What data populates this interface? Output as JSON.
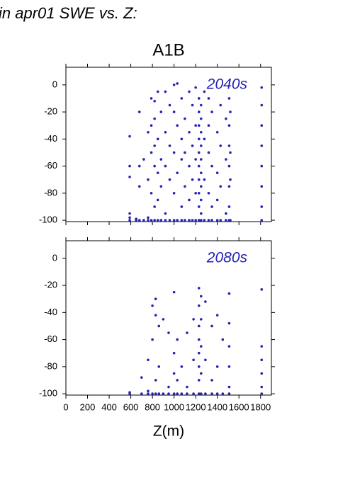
{
  "header": {
    "caption": "in apr01 SWE vs. Z:",
    "title": "A1B"
  },
  "chart_data": [
    {
      "type": "scatter",
      "annotation": "2040s",
      "color": "#2323b4",
      "xlim": [
        0,
        1900
      ],
      "xticks": [
        0,
        200,
        400,
        600,
        800,
        1000,
        1200,
        1400,
        1600,
        1800
      ],
      "ylim": [
        -101,
        13
      ],
      "yticks": [
        0,
        -20,
        -40,
        -60,
        -80,
        -100
      ],
      "x": [
        590,
        590,
        590,
        590,
        590,
        590,
        650,
        650,
        680,
        680,
        680,
        680,
        720,
        720,
        760,
        760,
        760,
        760,
        790,
        790,
        790,
        790,
        790,
        820,
        820,
        820,
        820,
        820,
        820,
        850,
        850,
        850,
        850,
        850,
        880,
        880,
        880,
        880,
        920,
        920,
        920,
        920,
        920,
        960,
        960,
        960,
        960,
        1000,
        1000,
        1000,
        1000,
        1000,
        1030,
        1030,
        1030,
        1030,
        1070,
        1070,
        1070,
        1070,
        1070,
        1100,
        1100,
        1100,
        1100,
        1140,
        1140,
        1140,
        1140,
        1140,
        1170,
        1170,
        1170,
        1170,
        1200,
        1200,
        1200,
        1200,
        1200,
        1230,
        1230,
        1230,
        1230,
        1230,
        1230,
        1230,
        1230,
        1230,
        1230,
        1250,
        1250,
        1250,
        1250,
        1250,
        1250,
        1250,
        1250,
        1250,
        1250,
        1280,
        1280,
        1280,
        1280,
        1320,
        1320,
        1320,
        1320,
        1320,
        1350,
        1350,
        1350,
        1350,
        1400,
        1400,
        1400,
        1400,
        1430,
        1430,
        1430,
        1430,
        1480,
        1480,
        1480,
        1480,
        1510,
        1510,
        1510,
        1510,
        1510,
        1510,
        1510,
        1520,
        1520,
        1520,
        1520,
        1810,
        1810,
        1810,
        1810,
        1810,
        1810,
        1810,
        1810
      ],
      "values": [
        -100,
        -98,
        -95,
        -60,
        -68,
        -38,
        -100,
        -99,
        -20,
        -60,
        -75,
        -100,
        -100,
        -55,
        -100,
        -98,
        -35,
        -70,
        -10,
        -30,
        -50,
        -80,
        -100,
        -12,
        -25,
        -45,
        -60,
        -90,
        -100,
        -5,
        -40,
        -65,
        -85,
        -100,
        -20,
        -55,
        -75,
        -100,
        -5,
        -35,
        -60,
        -95,
        -100,
        -15,
        -45,
        -70,
        -100,
        0,
        -20,
        -50,
        -80,
        -100,
        1,
        -30,
        -65,
        -100,
        -10,
        -40,
        -55,
        -90,
        -100,
        -25,
        -50,
        -75,
        -100,
        -5,
        -35,
        -60,
        -85,
        -100,
        -15,
        -45,
        -70,
        -100,
        -2,
        -30,
        -55,
        -80,
        -100,
        -10,
        -20,
        -30,
        -40,
        -50,
        -60,
        -70,
        -80,
        -90,
        -100,
        -15,
        -25,
        -35,
        -45,
        -55,
        -65,
        -75,
        -85,
        -95,
        -100,
        -5,
        -40,
        -70,
        -100,
        -10,
        -30,
        -50,
        -80,
        -100,
        -20,
        -60,
        -90,
        -100,
        -35,
        -65,
        -85,
        -100,
        -15,
        -45,
        -75,
        -100,
        -25,
        -55,
        -95,
        -100,
        -10,
        -30,
        -45,
        -60,
        -75,
        -90,
        -100,
        -20,
        -50,
        -70,
        -100,
        -2,
        -15,
        -30,
        -45,
        -60,
        -75,
        -90,
        -100
      ]
    },
    {
      "type": "scatter",
      "annotation": "2080s",
      "color": "#2323b4",
      "xlabel": "Z(m)",
      "xlim": [
        0,
        1900
      ],
      "xticks": [
        0,
        200,
        400,
        600,
        800,
        1000,
        1200,
        1400,
        1600,
        1800
      ],
      "ylim": [
        -101,
        13
      ],
      "yticks": [
        0,
        -20,
        -40,
        -60,
        -80,
        -100
      ],
      "x": [
        590,
        590,
        700,
        700,
        760,
        760,
        760,
        800,
        800,
        800,
        830,
        830,
        830,
        830,
        860,
        860,
        860,
        900,
        900,
        950,
        950,
        950,
        1000,
        1000,
        1000,
        1000,
        1030,
        1030,
        1030,
        1070,
        1070,
        1120,
        1120,
        1120,
        1180,
        1180,
        1180,
        1230,
        1230,
        1230,
        1230,
        1230,
        1230,
        1230,
        1230,
        1250,
        1250,
        1250,
        1250,
        1250,
        1290,
        1290,
        1290,
        1350,
        1350,
        1350,
        1400,
        1400,
        1400,
        1450,
        1450,
        1510,
        1510,
        1510,
        1510,
        1510,
        1510,
        1810,
        1810,
        1810,
        1810,
        1810,
        1810
      ],
      "values": [
        -100,
        -99,
        -88,
        -100,
        -75,
        -100,
        -98,
        -35,
        -60,
        -100,
        -30,
        -42,
        -90,
        -100,
        -50,
        -80,
        -100,
        -45,
        -100,
        -55,
        -95,
        -100,
        -25,
        -70,
        -85,
        -100,
        -60,
        -90,
        -100,
        -80,
        -100,
        -55,
        -95,
        -100,
        -45,
        -75,
        -100,
        -22,
        -35,
        -50,
        -60,
        -70,
        -80,
        -90,
        -100,
        -28,
        -45,
        -65,
        -85,
        -100,
        -32,
        -75,
        -100,
        -50,
        -90,
        -100,
        -42,
        -80,
        -100,
        -60,
        -100,
        -26,
        -48,
        -65,
        -80,
        -95,
        -100,
        -23,
        -65,
        -75,
        -85,
        -95,
        -100
      ]
    }
  ]
}
